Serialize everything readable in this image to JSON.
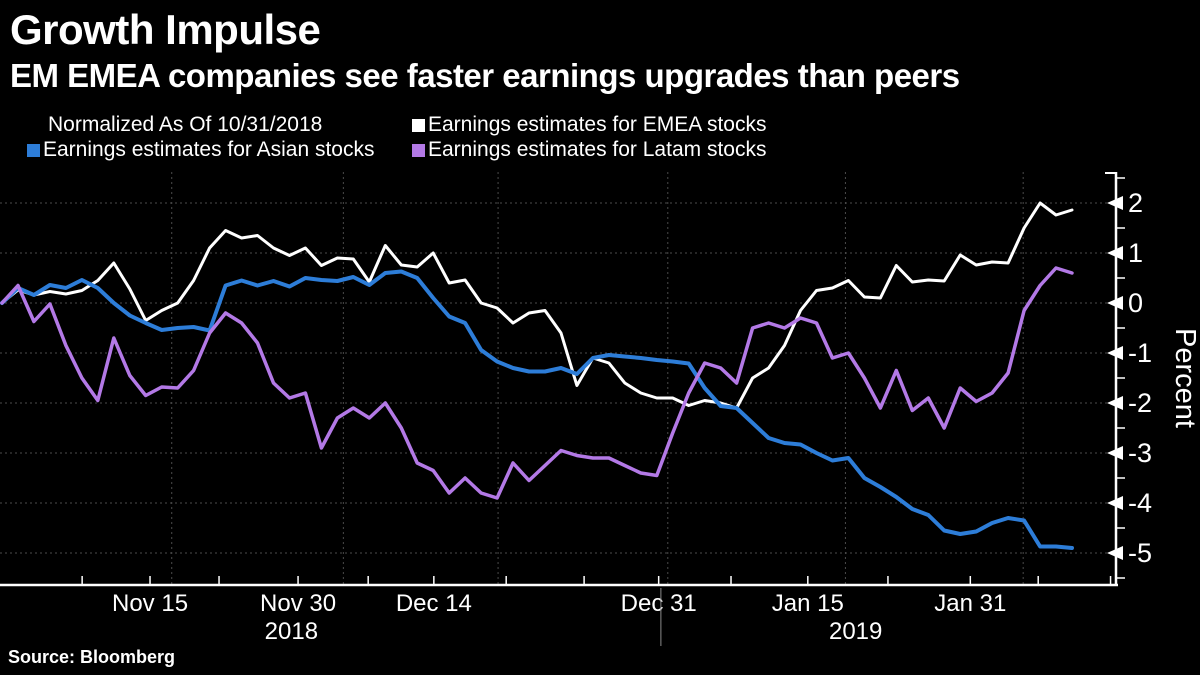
{
  "header": {
    "title": "Growth Impulse",
    "subtitle": "EM EMEA companies see faster earnings upgrades than peers"
  },
  "legend": {
    "note": "Normalized As Of 10/31/2018",
    "items": [
      {
        "label": "Earnings estimates for EMEA stocks",
        "color": "#ffffff"
      },
      {
        "label": "Earnings estimates for Asian stocks",
        "color": "#2d7dd8"
      },
      {
        "label": "Earnings estimates for Latam stocks",
        "color": "#b379e6"
      }
    ]
  },
  "source": "Source: Bloomberg",
  "chart_data": {
    "type": "line",
    "title": "Growth Impulse",
    "subtitle": "EM EMEA companies see faster earnings upgrades than peers",
    "note": "Normalized As Of 10/31/2018",
    "ylabel": "Percent",
    "background": "#000000",
    "y_axis": {
      "max": 2.62,
      "min": -5.64,
      "ticks": [
        2,
        1,
        0,
        -1,
        -2,
        -3,
        -4,
        -5
      ],
      "minor_ticks": [
        2.5,
        1.5,
        0.5,
        -0.5,
        -1.5,
        -2.5,
        -3.5,
        -4.5,
        -5.5
      ]
    },
    "x_axis": {
      "labels": [
        {
          "text": "Nov 15",
          "pos": 0.133
        },
        {
          "text": "Nov 30",
          "pos": 0.266
        },
        {
          "text": "Dec 14",
          "pos": 0.388
        },
        {
          "text": "Dec 31",
          "pos": 0.59
        },
        {
          "text": "Jan 15",
          "pos": 0.724
        },
        {
          "text": "Jan 31",
          "pos": 0.87
        }
      ],
      "minor_tick_pos": [
        0.072,
        0.195,
        0.329,
        0.453,
        0.523,
        0.655,
        0.796,
        0.931,
        0.996
      ],
      "years": [
        {
          "text": "2018",
          "pos": 0.26
        },
        {
          "text": "2019",
          "pos": 0.767
        }
      ],
      "year_divider_pos": 0.592
    },
    "grid": {
      "color": "#4b4b4b",
      "divider_color": "#8a8a8a",
      "vline_pos": [
        0.1525,
        0.3067,
        0.4457,
        0.5982,
        0.7578,
        0.9175
      ]
    },
    "series": [
      {
        "name": "Earnings estimates for EMEA stocks",
        "color": "#ffffff",
        "width": 3,
        "values": [
          0,
          0.26,
          0.16,
          0.23,
          0.18,
          0.25,
          0.45,
          0.8,
          0.28,
          -0.35,
          -0.15,
          0.0,
          0.45,
          1.1,
          1.45,
          1.3,
          1.35,
          1.1,
          0.95,
          1.1,
          0.75,
          0.9,
          0.88,
          0.42,
          1.15,
          0.76,
          0.72,
          1.0,
          0.4,
          0.46,
          0.0,
          -0.1,
          -0.4,
          -0.2,
          -0.15,
          -0.6,
          -1.65,
          -1.1,
          -1.2,
          -1.6,
          -1.8,
          -1.9,
          -1.9,
          -2.05,
          -1.95,
          -2.0,
          -2.1,
          -1.5,
          -1.3,
          -0.85,
          -0.15,
          0.25,
          0.3,
          0.45,
          0.12,
          0.1,
          0.75,
          0.42,
          0.46,
          0.44,
          0.96,
          0.76,
          0.82,
          0.8,
          1.5,
          2.0,
          1.76,
          1.86
        ]
      },
      {
        "name": "Earnings estimates for Asian stocks",
        "color": "#2d7dd8",
        "width": 4,
        "values": [
          0,
          0.3,
          0.16,
          0.36,
          0.3,
          0.46,
          0.3,
          0.0,
          -0.25,
          -0.4,
          -0.54,
          -0.5,
          -0.48,
          -0.55,
          0.35,
          0.45,
          0.35,
          0.44,
          0.33,
          0.5,
          0.46,
          0.44,
          0.52,
          0.36,
          0.6,
          0.63,
          0.5,
          0.1,
          -0.27,
          -0.4,
          -0.94,
          -1.17,
          -1.3,
          -1.37,
          -1.37,
          -1.3,
          -1.42,
          -1.1,
          -1.04,
          -1.07,
          -1.1,
          -1.14,
          -1.17,
          -1.21,
          -1.7,
          -2.06,
          -2.1,
          -2.4,
          -2.7,
          -2.8,
          -2.83,
          -3.0,
          -3.15,
          -3.1,
          -3.5,
          -3.68,
          -3.88,
          -4.12,
          -4.24,
          -4.55,
          -4.62,
          -4.57,
          -4.4,
          -4.3,
          -4.35,
          -4.87,
          -4.87,
          -4.9
        ]
      },
      {
        "name": "Earnings estimates for Latam stocks",
        "color": "#b379e6",
        "width": 3.5,
        "values": [
          0,
          0.35,
          -0.37,
          -0.02,
          -0.85,
          -1.5,
          -1.95,
          -0.7,
          -1.45,
          -1.85,
          -1.68,
          -1.7,
          -1.35,
          -0.6,
          -0.2,
          -0.4,
          -0.8,
          -1.6,
          -1.9,
          -1.8,
          -2.9,
          -2.3,
          -2.1,
          -2.3,
          -2.0,
          -2.5,
          -3.2,
          -3.35,
          -3.8,
          -3.5,
          -3.8,
          -3.9,
          -3.2,
          -3.55,
          -3.25,
          -2.95,
          -3.05,
          -3.1,
          -3.1,
          -3.25,
          -3.4,
          -3.45,
          -2.6,
          -1.8,
          -1.2,
          -1.3,
          -1.6,
          -0.5,
          -0.4,
          -0.5,
          -0.3,
          -0.4,
          -1.1,
          -1.0,
          -1.5,
          -2.1,
          -1.35,
          -2.15,
          -1.9,
          -2.5,
          -1.7,
          -1.97,
          -1.8,
          -1.4,
          -0.15,
          0.35,
          0.7,
          0.6
        ]
      }
    ]
  }
}
